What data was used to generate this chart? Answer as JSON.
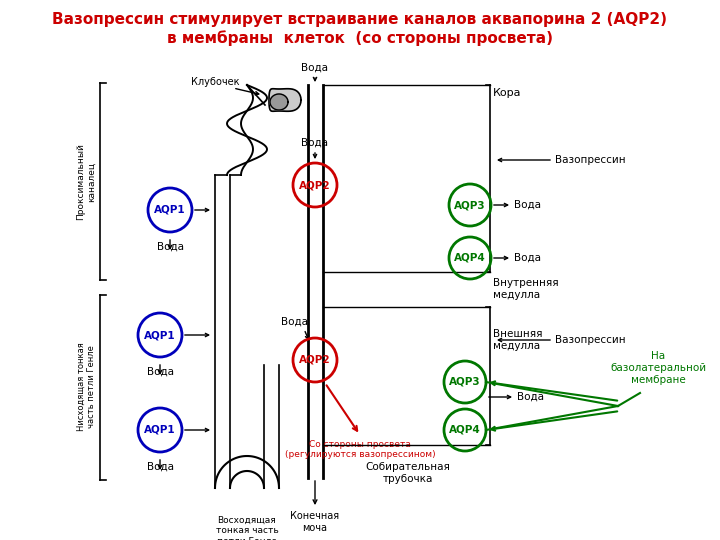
{
  "title_line1": "Вазопрессин стимулирует встраивание каналов аквапорина 2 (AQP2)",
  "title_line2": "в мембраны  клеток  (со стороны просвета)",
  "title_color": "#cc0000",
  "bg_color": "#ffffff",
  "label_proximal": "Проксимальный\nканалец",
  "label_descending": "Нисходящая тонкая\nчасть петли Генле",
  "label_ascending": "Восходящая\nтонкая часть\nпетли Генле",
  "label_glomerulus": "Клубочек",
  "label_cortex": "Кора",
  "label_inner_medulla": "Внутренняя\nмедулла",
  "label_outer_medulla": "Внешняя\nмедулла",
  "label_collecting": "Собирательная\nтрубочка",
  "label_final_urine": "Конечная\nмоча",
  "label_basolateral": "На\nбазолатеральной\nмембране",
  "label_lumen": "Со стороны просвета\n(регулируются вазопрессином)",
  "label_vasopressin1": "Вазопрессин",
  "label_vasopressin2": "Вазопрессин",
  "label_water": "Вода",
  "aqp_blue_color": "#0000bb",
  "aqp_red_color": "#cc0000",
  "aqp_green_color": "#007700",
  "arrow_color": "#000000",
  "green_arrow_color": "#007700",
  "red_arrow_color": "#cc0000"
}
